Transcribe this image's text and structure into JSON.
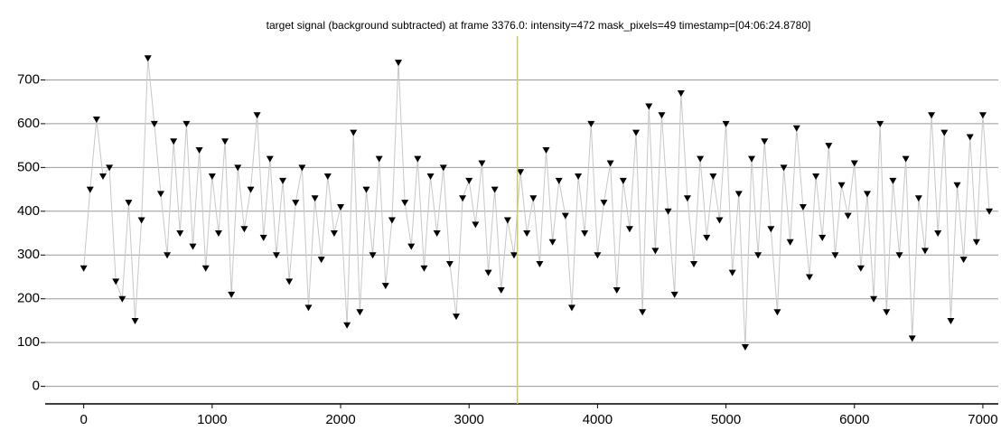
{
  "chart_data": {
    "type": "line",
    "title": "target signal (background subtracted) at frame 3376.0: intensity=472 mask_pixels=49 timestamp=[04:06:24.8780]",
    "x": [
      0,
      50,
      100,
      150,
      200,
      250,
      300,
      350,
      400,
      450,
      500,
      550,
      600,
      650,
      700,
      750,
      800,
      850,
      900,
      950,
      1000,
      1050,
      1100,
      1150,
      1200,
      1250,
      1300,
      1350,
      1400,
      1450,
      1500,
      1550,
      1600,
      1650,
      1700,
      1750,
      1800,
      1850,
      1900,
      1950,
      2000,
      2050,
      2100,
      2150,
      2200,
      2250,
      2300,
      2350,
      2400,
      2450,
      2500,
      2550,
      2600,
      2650,
      2700,
      2750,
      2800,
      2850,
      2900,
      2950,
      3000,
      3050,
      3100,
      3150,
      3200,
      3250,
      3300,
      3350,
      3400,
      3450,
      3500,
      3550,
      3600,
      3650,
      3700,
      3750,
      3800,
      3850,
      3900,
      3950,
      4000,
      4050,
      4100,
      4150,
      4200,
      4250,
      4300,
      4350,
      4400,
      4450,
      4500,
      4550,
      4600,
      4650,
      4700,
      4750,
      4800,
      4850,
      4900,
      4950,
      5000,
      5050,
      5100,
      5150,
      5200,
      5250,
      5300,
      5350,
      5400,
      5450,
      5500,
      5550,
      5600,
      5650,
      5700,
      5750,
      5800,
      5850,
      5900,
      5950,
      6000,
      6050,
      6100,
      6150,
      6200,
      6250,
      6300,
      6350,
      6400,
      6450,
      6500,
      6550,
      6600,
      6650,
      6700,
      6750,
      6800,
      6850,
      6900,
      6950,
      7000,
      7050
    ],
    "series": [
      {
        "color": "#000000",
        "line_color": "#c8c8c8",
        "values": [
          270,
          450,
          610,
          480,
          500,
          240,
          200,
          420,
          150,
          380,
          750,
          600,
          440,
          300,
          560,
          350,
          600,
          320,
          540,
          270,
          480,
          350,
          560,
          210,
          500,
          360,
          450,
          620,
          340,
          520,
          300,
          470,
          240,
          420,
          500,
          180,
          430,
          290,
          480,
          350,
          410,
          140,
          580,
          170,
          450,
          300,
          520,
          230,
          380,
          740,
          420,
          320,
          520,
          270,
          480,
          350,
          500,
          280,
          160,
          430,
          470,
          370,
          510,
          260,
          450,
          220,
          380,
          300,
          490,
          350,
          430,
          280,
          540,
          330,
          470,
          390,
          180,
          480,
          350,
          600,
          300,
          420,
          510,
          220,
          470,
          360,
          580,
          170,
          640,
          310,
          620,
          400,
          210,
          670,
          430,
          280,
          520,
          340,
          480,
          380,
          600,
          260,
          440,
          90,
          520,
          300,
          560,
          360,
          170,
          500,
          330,
          590,
          410,
          250,
          480,
          340,
          550,
          300,
          460,
          390,
          510,
          270,
          440,
          200,
          600,
          170,
          470,
          300,
          520,
          110,
          430,
          310,
          620,
          350,
          580,
          150,
          460,
          290,
          570,
          330,
          620,
          400
        ]
      }
    ],
    "marker_frame": 3376,
    "marker_color": "#c8c878",
    "xlim": [
      -300,
      7120
    ],
    "ylim": [
      -40,
      800
    ],
    "xticks": [
      0,
      1000,
      2000,
      3000,
      4000,
      5000,
      6000,
      7000
    ],
    "yticks": [
      0,
      100,
      200,
      300,
      400,
      500,
      600,
      700
    ],
    "grid": true
  }
}
